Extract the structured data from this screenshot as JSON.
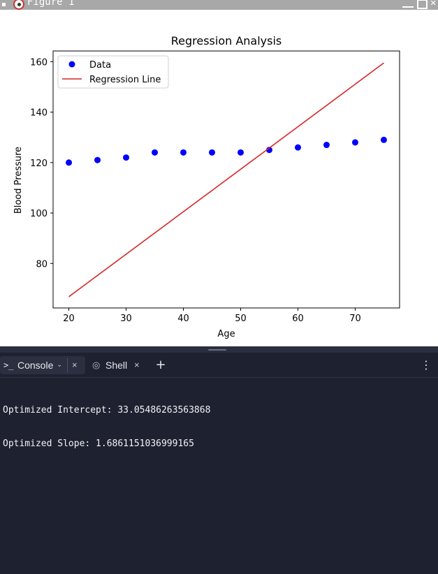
{
  "figure_window": {
    "title": "Figure 1",
    "icons": {
      "app": "matplotlib-icon",
      "minimize": "minimize-icon",
      "maximize": "maximize-icon",
      "close": "close-icon"
    }
  },
  "chart_data": {
    "type": "scatter",
    "title": "Regression Analysis",
    "xlabel": "Age",
    "ylabel": "Blood Pressure",
    "xlim": [
      17.25,
      77.75
    ],
    "ylim": [
      62.35,
      164.25
    ],
    "x_ticks": [
      20,
      30,
      40,
      50,
      60,
      70
    ],
    "y_ticks": [
      80,
      100,
      120,
      140,
      160
    ],
    "grid": false,
    "legend": "top-left",
    "series": [
      {
        "name": "Data",
        "kind": "scatter",
        "color": "#0000ff",
        "points": [
          [
            20,
            120
          ],
          [
            25,
            121
          ],
          [
            30,
            122
          ],
          [
            35,
            124
          ],
          [
            40,
            124
          ],
          [
            45,
            124
          ],
          [
            50,
            124
          ],
          [
            55,
            125
          ],
          [
            60,
            126
          ],
          [
            65,
            127
          ],
          [
            70,
            128
          ],
          [
            75,
            129
          ]
        ]
      },
      {
        "name": "Regression Line",
        "kind": "line",
        "color": "#d62728",
        "points": [
          [
            20,
            66.8
          ],
          [
            75,
            159.5
          ]
        ]
      }
    ]
  },
  "console_pane": {
    "tabs": [
      {
        "label": "Console",
        "icon": "terminal-prompt-icon",
        "active": true
      },
      {
        "label": "Shell",
        "icon": "shell-icon",
        "active": false
      }
    ],
    "icons": {
      "add_tab": "plus-icon",
      "more": "more-vertical-icon",
      "close": "close-icon",
      "chevron": "chevron-down-icon"
    },
    "output_lines": [
      "Optimized Intercept: 33.05486263563868",
      "Optimized Slope: 1.6861151036999165"
    ]
  }
}
